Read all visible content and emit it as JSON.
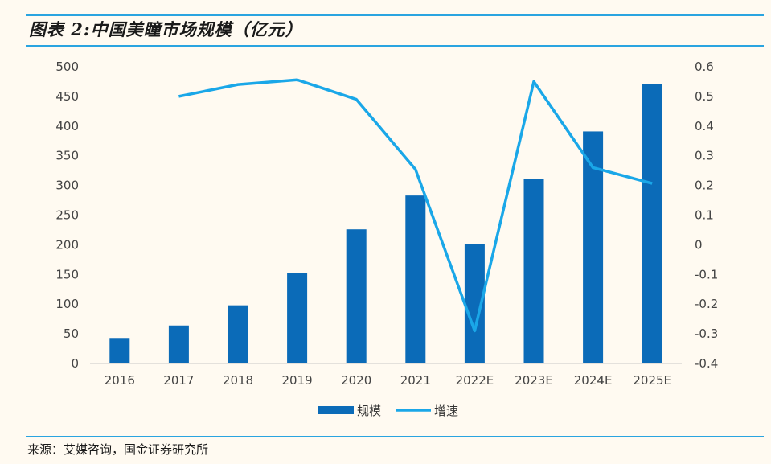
{
  "title": "图表 2:中国美瞳市场规模（亿元）",
  "source": "来源：艾媒咨询，国金证券研究所",
  "chart_data": {
    "type": "bar+line",
    "categories": [
      "2016",
      "2017",
      "2018",
      "2019",
      "2020",
      "2021",
      "2022E",
      "2023E",
      "2024E",
      "2025E"
    ],
    "series": [
      {
        "name": "规模",
        "type": "bar",
        "axis": "left",
        "color": "#0b6bb8",
        "values": [
          43,
          64,
          98,
          152,
          226,
          283,
          201,
          311,
          391,
          471
        ]
      },
      {
        "name": "增速",
        "type": "line",
        "axis": "right",
        "color": "#1aa7e8",
        "values": [
          null,
          0.5,
          0.54,
          0.556,
          0.49,
          0.254,
          -0.29,
          0.55,
          0.26,
          0.207
        ]
      }
    ],
    "y_left": {
      "min": 0,
      "max": 500,
      "ticks": [
        "500",
        "450",
        "400",
        "350",
        "300",
        "250",
        "200",
        "150",
        "100",
        "50",
        "0"
      ]
    },
    "y_right": {
      "min": -0.4,
      "max": 0.6,
      "ticks": [
        "0.6",
        "0.5",
        "0.4",
        "0.3",
        "0.2",
        "0.1",
        "0",
        "-0.1",
        "-0.2",
        "-0.3",
        "-0.4"
      ]
    },
    "legend": [
      "规模",
      "增速"
    ],
    "legend_position": "bottom-center"
  }
}
